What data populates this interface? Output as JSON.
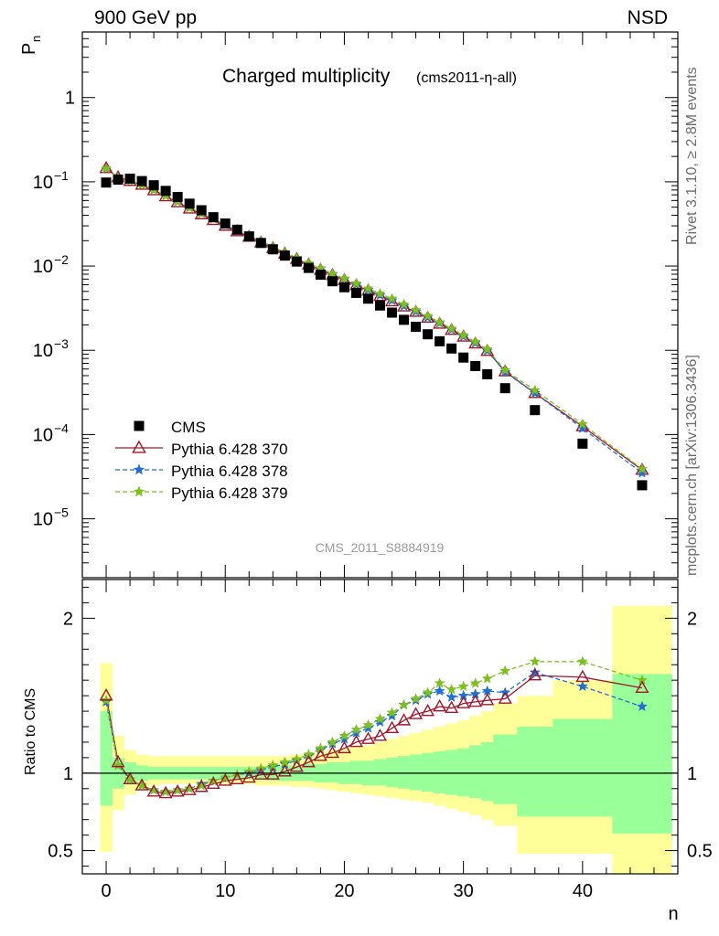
{
  "header": {
    "left": "900 GeV pp",
    "right": "NSD"
  },
  "side_labels": {
    "rivet": "Rivet 3.1.10, ≥ 2.8M events",
    "mcplots": "mcplots.cern.ch [arXiv:1306.3436]"
  },
  "chart_data": [
    {
      "type": "scatter",
      "title": "Charged multiplicity",
      "subtitle": "(cms2011-η-all)",
      "ylabel": "P_n",
      "ylabel_main": "P",
      "ylabel_sub": "n",
      "xlabel": "",
      "yscale": "log",
      "xlim": [
        -2,
        48
      ],
      "ylim": [
        2e-06,
        6
      ],
      "y_ticks": [
        {
          "value": 1,
          "label": "1"
        },
        {
          "value": 0.1,
          "label": "10",
          "exp": "−1"
        },
        {
          "value": 0.01,
          "label": "10",
          "exp": "−2"
        },
        {
          "value": 0.001,
          "label": "10",
          "exp": "−3"
        },
        {
          "value": 0.0001,
          "label": "10",
          "exp": "−4"
        },
        {
          "value": 1e-05,
          "label": "10",
          "exp": "−5"
        }
      ],
      "watermark": "CMS_2011_S8884919",
      "legend_position": "bottom-left",
      "x": [
        0,
        1,
        2,
        3,
        4,
        5,
        6,
        7,
        8,
        9,
        10,
        11,
        12,
        13,
        14,
        15,
        16,
        17,
        18,
        19,
        20,
        21,
        22,
        23,
        24,
        25,
        26,
        27,
        28,
        29,
        30,
        31,
        32,
        33.5,
        36,
        40,
        45
      ],
      "series": [
        {
          "name": "CMS",
          "color": "#000000",
          "marker": "square",
          "line": "none",
          "values": [
            0.098,
            0.106,
            0.109,
            0.102,
            0.091,
            0.078,
            0.066,
            0.055,
            0.046,
            0.038,
            0.032,
            0.027,
            0.0225,
            0.0188,
            0.0158,
            0.0133,
            0.0113,
            0.0095,
            0.0079,
            0.0066,
            0.0056,
            0.0048,
            0.0041,
            0.0034,
            0.0028,
            0.0023,
            0.0019,
            0.00155,
            0.00128,
            0.00105,
            0.00082,
            0.00065,
            0.00052,
            0.000355,
            0.000195,
            7.8e-05,
            2.5e-05
          ]
        },
        {
          "name": "Pythia 6.428 370",
          "color": "#a0162c",
          "marker": "triangle",
          "line": "solid",
          "values": [
            0.145,
            0.113,
            0.102,
            0.092,
            0.079,
            0.067,
            0.057,
            0.048,
            0.041,
            0.035,
            0.03,
            0.0258,
            0.0222,
            0.019,
            0.0163,
            0.014,
            0.0121,
            0.0104,
            0.009,
            0.0078,
            0.0068,
            0.0059,
            0.0051,
            0.0044,
            0.0038,
            0.0033,
            0.00285,
            0.00243,
            0.00206,
            0.00174,
            0.00145,
            0.0012,
            0.00098,
            0.00056,
            0.00031,
            0.000125,
            3.8e-05
          ]
        },
        {
          "name": "Pythia 6.428 378",
          "color": "#1f6fd4",
          "marker": "star",
          "line": "dashed",
          "values": [
            0.143,
            0.112,
            0.102,
            0.092,
            0.08,
            0.068,
            0.058,
            0.049,
            0.042,
            0.036,
            0.031,
            0.0265,
            0.0228,
            0.0196,
            0.0168,
            0.0144,
            0.0124,
            0.0107,
            0.0093,
            0.008,
            0.007,
            0.006,
            0.0052,
            0.0045,
            0.0039,
            0.00335,
            0.00288,
            0.00245,
            0.0021,
            0.00176,
            0.00146,
            0.00122,
            0.00099,
            0.00055,
            0.00031,
            0.000118,
            3.5e-05
          ]
        },
        {
          "name": "Pythia 6.428 379",
          "color": "#7ebf20",
          "marker": "star",
          "line": "dashed",
          "values": [
            0.144,
            0.112,
            0.102,
            0.092,
            0.08,
            0.068,
            0.058,
            0.049,
            0.042,
            0.036,
            0.031,
            0.0266,
            0.0229,
            0.0197,
            0.0169,
            0.0145,
            0.0125,
            0.0108,
            0.0094,
            0.0081,
            0.0071,
            0.0062,
            0.0054,
            0.0047,
            0.0041,
            0.0035,
            0.003,
            0.00255,
            0.00215,
            0.00181,
            0.00151,
            0.00126,
            0.00103,
            0.00058,
            0.000335,
            0.000133,
            3.9e-05
          ]
        }
      ]
    },
    {
      "type": "line",
      "ylabel": "Ratio to CMS",
      "xlabel": "n",
      "xlim": [
        -2,
        48
      ],
      "ylim": [
        0.35,
        2.25
      ],
      "y_ticks": [
        {
          "value": 0.5,
          "label": "0.5"
        },
        {
          "value": 1,
          "label": "1"
        },
        {
          "value": 2,
          "label": "2"
        }
      ],
      "x_ticks": [
        {
          "value": 0,
          "label": "0"
        },
        {
          "value": 10,
          "label": "10"
        },
        {
          "value": 20,
          "label": "20"
        },
        {
          "value": 30,
          "label": "30"
        },
        {
          "value": 40,
          "label": "40"
        }
      ],
      "reference": 1,
      "bands": {
        "bin_edges": [
          -0.5,
          0.5,
          1.5,
          2.5,
          3.5,
          4.5,
          5.5,
          6.5,
          7.5,
          8.5,
          9.5,
          10.5,
          11.5,
          12.5,
          13.5,
          14.5,
          15.5,
          16.5,
          17.5,
          18.5,
          19.5,
          20.5,
          21.5,
          22.5,
          23.5,
          24.5,
          25.5,
          26.5,
          27.5,
          28.5,
          29.5,
          30.5,
          31.5,
          32.5,
          34.5,
          37.5,
          42.5,
          47.5
        ],
        "outer": {
          "color": "#ffff99",
          "lo": [
            0.49,
            0.76,
            0.86,
            0.9,
            0.92,
            0.93,
            0.93,
            0.93,
            0.93,
            0.93,
            0.93,
            0.93,
            0.93,
            0.92,
            0.92,
            0.92,
            0.91,
            0.91,
            0.9,
            0.89,
            0.88,
            0.87,
            0.86,
            0.85,
            0.84,
            0.83,
            0.82,
            0.81,
            0.79,
            0.77,
            0.75,
            0.73,
            0.7,
            0.66,
            0.48,
            0.48,
            0.3
          ],
          "hi": [
            1.71,
            1.24,
            1.15,
            1.12,
            1.11,
            1.11,
            1.11,
            1.11,
            1.11,
            1.11,
            1.11,
            1.11,
            1.11,
            1.11,
            1.11,
            1.11,
            1.12,
            1.13,
            1.14,
            1.15,
            1.16,
            1.17,
            1.18,
            1.2,
            1.22,
            1.24,
            1.26,
            1.28,
            1.3,
            1.32,
            1.34,
            1.37,
            1.4,
            1.45,
            1.5,
            1.6,
            2.08
          ]
        },
        "inner": {
          "color": "#99ff99",
          "lo": [
            0.79,
            0.9,
            0.93,
            0.95,
            0.96,
            0.96,
            0.96,
            0.96,
            0.96,
            0.96,
            0.96,
            0.96,
            0.96,
            0.96,
            0.95,
            0.95,
            0.95,
            0.95,
            0.94,
            0.94,
            0.93,
            0.93,
            0.92,
            0.92,
            0.91,
            0.9,
            0.89,
            0.88,
            0.87,
            0.86,
            0.85,
            0.84,
            0.82,
            0.8,
            0.72,
            0.72,
            0.61
          ],
          "hi": [
            1.4,
            1.1,
            1.07,
            1.05,
            1.04,
            1.04,
            1.04,
            1.04,
            1.04,
            1.04,
            1.04,
            1.04,
            1.04,
            1.04,
            1.05,
            1.05,
            1.05,
            1.06,
            1.06,
            1.07,
            1.07,
            1.08,
            1.08,
            1.09,
            1.1,
            1.11,
            1.12,
            1.13,
            1.14,
            1.15,
            1.16,
            1.18,
            1.2,
            1.25,
            1.3,
            1.35,
            1.64
          ]
        }
      },
      "series": [
        {
          "name": "Pythia 6.428 370",
          "color": "#a0162c",
          "marker": "triangle",
          "line": "solid",
          "values": [
            1.5,
            1.07,
            0.96,
            0.92,
            0.88,
            0.87,
            0.88,
            0.89,
            0.91,
            0.93,
            0.95,
            0.96,
            0.97,
            0.99,
            0.99,
            1.01,
            1.04,
            1.07,
            1.11,
            1.13,
            1.16,
            1.2,
            1.22,
            1.24,
            1.29,
            1.34,
            1.38,
            1.4,
            1.43,
            1.42,
            1.45,
            1.46,
            1.47,
            1.48,
            1.63,
            1.62,
            1.55
          ]
        },
        {
          "name": "Pythia 6.428 378",
          "color": "#1f6fd4",
          "marker": "star",
          "line": "dashed",
          "values": [
            1.46,
            1.05,
            0.96,
            0.92,
            0.89,
            0.88,
            0.89,
            0.9,
            0.93,
            0.95,
            0.97,
            0.99,
            1.0,
            1.02,
            1.04,
            1.06,
            1.08,
            1.11,
            1.15,
            1.19,
            1.22,
            1.26,
            1.29,
            1.33,
            1.37,
            1.44,
            1.47,
            1.51,
            1.53,
            1.49,
            1.5,
            1.51,
            1.53,
            1.52,
            1.65,
            1.56,
            1.43
          ]
        },
        {
          "name": "Pythia 6.428 379",
          "color": "#7ebf20",
          "marker": "star",
          "line": "dashed",
          "values": [
            1.47,
            1.05,
            0.96,
            0.92,
            0.89,
            0.88,
            0.89,
            0.9,
            0.92,
            0.95,
            0.97,
            0.99,
            1.01,
            1.03,
            1.05,
            1.07,
            1.09,
            1.12,
            1.16,
            1.2,
            1.24,
            1.28,
            1.31,
            1.35,
            1.39,
            1.44,
            1.48,
            1.52,
            1.58,
            1.54,
            1.56,
            1.58,
            1.61,
            1.66,
            1.72,
            1.72,
            1.6
          ]
        }
      ]
    }
  ]
}
